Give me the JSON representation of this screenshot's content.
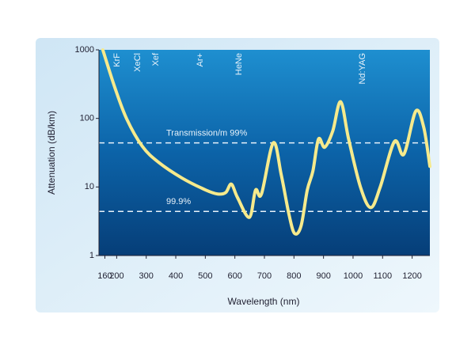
{
  "chart_data": {
    "type": "line",
    "x_label": "Wavelength (nm)",
    "y_label": "Attenuation (dB/km)",
    "log_y": true,
    "xlim": [
      140,
      1260
    ],
    "ylim": [
      1,
      1000
    ],
    "xticks": [
      160,
      200,
      300,
      400,
      500,
      600,
      700,
      800,
      900,
      1000,
      1100,
      1200
    ],
    "yticks": [
      1,
      10,
      100,
      1000
    ],
    "series": [
      {
        "color": "#f6ea8c",
        "x": [
          153,
          194,
          234,
          287,
          341,
          421,
          502,
          542,
          569,
          588,
          609,
          649,
          670,
          690,
          730,
          757,
          783,
          802,
          824,
          845,
          864,
          883,
          904,
          931,
          958,
          985,
          1025,
          1060,
          1092,
          1140,
          1172,
          1212,
          1239,
          1260
        ],
        "values": [
          1000,
          280,
          98,
          39,
          23,
          13.5,
          9,
          7.9,
          8.3,
          11,
          7,
          3.6,
          9,
          7.9,
          44,
          15,
          4,
          2.1,
          2.7,
          9,
          17,
          50,
          38,
          65,
          175,
          50,
          10,
          5,
          10,
          46,
          30,
          127,
          75,
          20
        ]
      }
    ],
    "reference_lines": [
      {
        "value": 44,
        "label": "Transmission/m 99%"
      },
      {
        "value": 4.4,
        "label": "99.9%"
      }
    ],
    "annotations": [
      {
        "text": "KrF",
        "x": 202
      },
      {
        "text": "XeCl",
        "x": 271
      },
      {
        "text": "Xef",
        "x": 333
      },
      {
        "text": "Ar+",
        "x": 483
      },
      {
        "text": "HeNe",
        "x": 614
      },
      {
        "text": "Nd:YAG",
        "x": 1033
      }
    ]
  }
}
